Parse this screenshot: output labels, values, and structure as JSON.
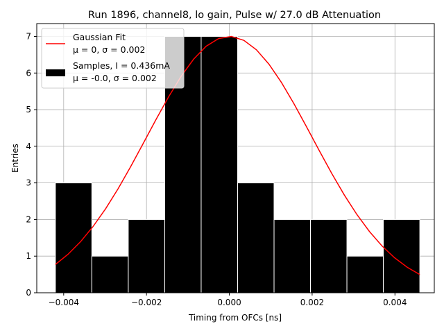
{
  "chart_data": {
    "type": "bar",
    "title": "Run 1896, channel8, lo gain, Pulse w/ 27.0 dB Attenuation",
    "xlabel": "Timing from OFCs [ns]",
    "ylabel": "Entries",
    "xlim": [
      -0.00465,
      0.00495
    ],
    "ylim": [
      0,
      7.35
    ],
    "grid": true,
    "xticks": [
      -0.004,
      -0.002,
      0.0,
      0.002,
      0.004
    ],
    "xtick_labels": [
      "−0.004",
      "−0.002",
      "0.000",
      "0.002",
      "0.004"
    ],
    "yticks": [
      0,
      1,
      2,
      3,
      4,
      5,
      6,
      7
    ],
    "ytick_labels": [
      "0",
      "1",
      "2",
      "3",
      "4",
      "5",
      "6",
      "7"
    ],
    "histogram": {
      "name": "Samples, I = 0.436mA",
      "color": "#000000",
      "edge_color": "#ffffff",
      "bin_edges": [
        -0.0042,
        -0.00332,
        -0.00244,
        -0.00156,
        -0.00068,
        0.0002,
        0.00108,
        0.00196,
        0.00284,
        0.00372,
        0.0046
      ],
      "counts": [
        3,
        1,
        2,
        7,
        7,
        3,
        2,
        2,
        1,
        2
      ]
    },
    "fit": {
      "name": "Gaussian Fit",
      "color": "#ff0000",
      "mu": 0,
      "sigma": 0.002,
      "amplitude": 7,
      "x_range": [
        -0.0042,
        0.0046
      ],
      "points": 30
    },
    "legend": {
      "position": "top-left",
      "entries": [
        {
          "label": "Gaussian Fit",
          "sublabel": "μ = 0, σ = 0.002"
        },
        {
          "label": "Samples, I = 0.436mA",
          "sublabel": "μ = -0.0, σ = 0.002"
        }
      ]
    }
  }
}
